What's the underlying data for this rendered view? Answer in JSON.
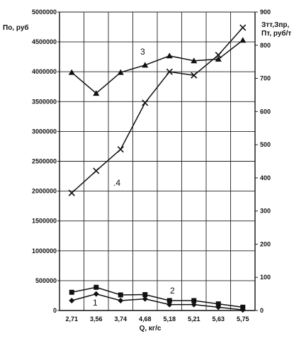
{
  "chart_data": {
    "type": "line",
    "x_label": "Q, кг/с",
    "categories": [
      "2,71",
      "3,56",
      "3,74",
      "4,68",
      "5,18",
      "5,21",
      "5,63",
      "5,75"
    ],
    "y_left_label": "По, руб",
    "y_left_ticks": [
      "0",
      "500000",
      "1000000",
      "1500000",
      "2000000",
      "2500000",
      "3000000",
      "3500000",
      "4000000",
      "4500000",
      "5000000"
    ],
    "y_left_range": [
      0,
      5000000
    ],
    "y_right_label": [
      "Зтт,Зпр,",
      "Пт, руб/т"
    ],
    "y_right_ticks": [
      "0",
      "100",
      "200",
      "300",
      "400",
      "500",
      "600",
      "700",
      "800",
      "900"
    ],
    "y_right_range": [
      0,
      900
    ],
    "grid": true,
    "series": [
      {
        "name": "1",
        "axis": "right",
        "marker": "diamond",
        "values": [
          30,
          50,
          30,
          35,
          18,
          18,
          10,
          2
        ]
      },
      {
        "name": "2",
        "axis": "right",
        "marker": "square",
        "values": [
          55,
          70,
          47,
          48,
          30,
          30,
          20,
          10
        ]
      },
      {
        "name": "3",
        "axis": "right",
        "marker": "triangle",
        "values": [
          718,
          655,
          718,
          740,
          768,
          753,
          758,
          815
        ]
      },
      {
        "name": ".4",
        "axis": "left",
        "marker": "cross",
        "values": [
          1970000,
          2340000,
          2700000,
          3480000,
          4000000,
          3940000,
          4280000,
          4740000
        ]
      }
    ]
  }
}
